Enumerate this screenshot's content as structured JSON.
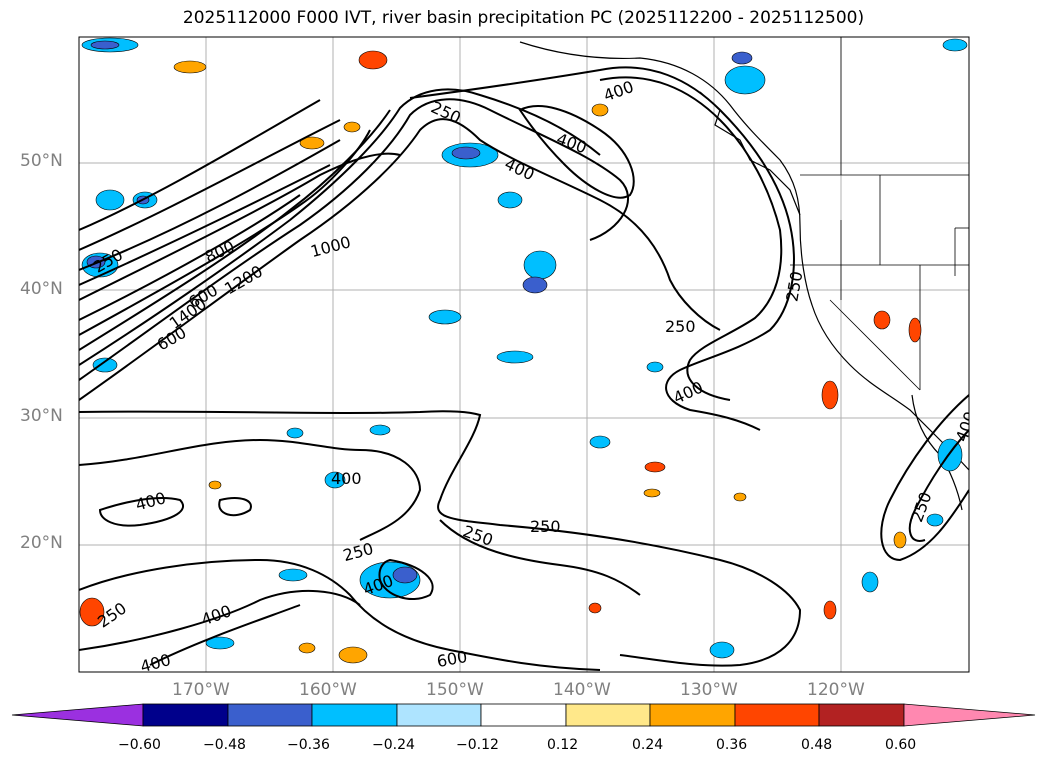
{
  "title": "2025112000 F000 IVT, river basin precipitation PC (2025112200 - 2025112500)",
  "lat_labels": [
    "50°N",
    "40°N",
    "30°N",
    "20°N"
  ],
  "lon_labels": [
    "170°W",
    "160°W",
    "150°W",
    "140°W",
    "130°W",
    "120°W"
  ],
  "contour_labels": [
    "250",
    "400",
    "400",
    "400",
    "250",
    "800",
    "1000",
    "250",
    "600",
    "1400",
    "1200",
    "600",
    "250",
    "400",
    "400",
    "400",
    "250",
    "250",
    "250",
    "400",
    "600",
    "250",
    "400",
    "400",
    "250",
    "400"
  ],
  "colorbar": {
    "ticks": [
      "−0.60",
      "−0.48",
      "−0.36",
      "−0.24",
      "−0.12",
      "0.12",
      "0.24",
      "0.36",
      "0.48",
      "0.60"
    ],
    "colors": {
      "under": "#9b30e0",
      "bins": [
        "#8b28d8",
        "#00008b",
        "#3a5fcd",
        "#00bfff",
        "#aee4ff",
        "#ffffff",
        "#ffe88a",
        "#ffa500",
        "#ff4500",
        "#b22222"
      ],
      "over": "#ff88b0"
    }
  },
  "colors": {
    "ocean": "#ffffff",
    "contour": "#000000",
    "gridline": "#b0b0b0",
    "axis_label": "#808080"
  }
}
